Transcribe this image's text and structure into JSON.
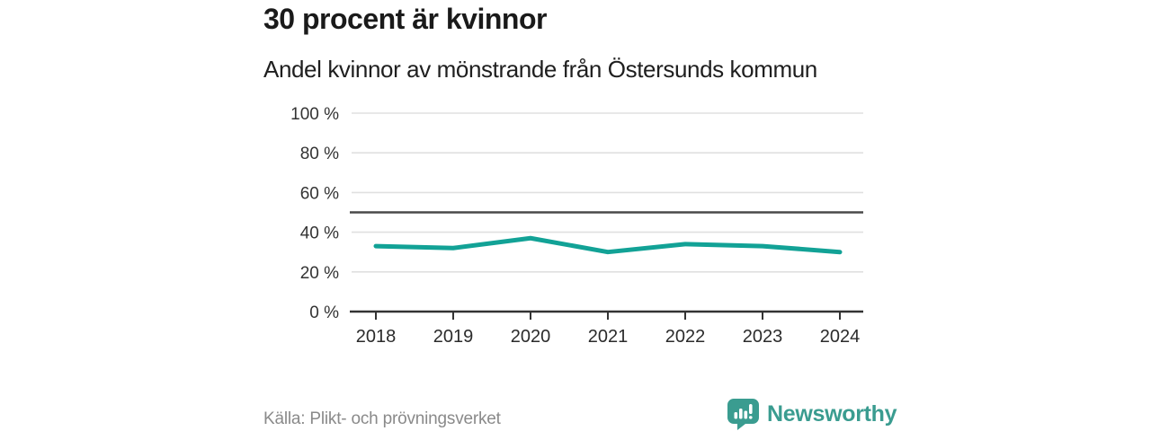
{
  "chart_data": {
    "type": "line",
    "title": "30 procent är kvinnor",
    "subtitle": "Andel kvinnor av mönstrande från Östersunds kommun",
    "categories": [
      "2018",
      "2019",
      "2020",
      "2021",
      "2022",
      "2023",
      "2024"
    ],
    "values": [
      33,
      32,
      37,
      30,
      34,
      33,
      30
    ],
    "unit": "%",
    "ylim": [
      0,
      100
    ],
    "yticks": [
      0,
      20,
      40,
      60,
      80,
      100
    ],
    "ytick_suffix": " %",
    "reference_line": 50,
    "grid": true,
    "legend": false,
    "xlabel": "",
    "ylabel": ""
  },
  "footer": {
    "source": "Källa: Plikt- och prövningsverket",
    "brand": "Newsworthy"
  },
  "colors": {
    "line": "#12a296",
    "grid": "#e0e0e0",
    "axis": "#333333",
    "reference_line": "#4a4a4a",
    "tick_text": "#333333",
    "axis_text": "#2b2b2b",
    "title_text": "#1a1a1a",
    "muted_text": "#8a8a8a",
    "brand": "#3a9c90"
  }
}
